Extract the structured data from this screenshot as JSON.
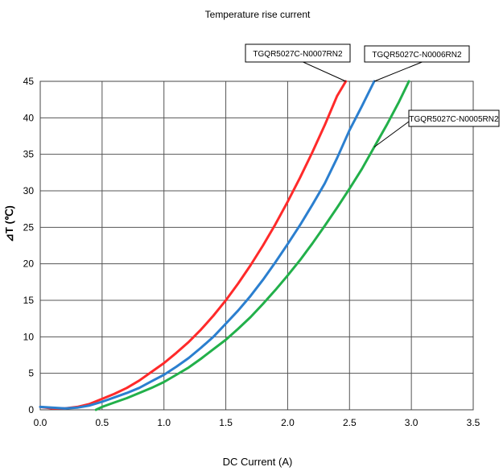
{
  "chart_data": {
    "type": "line",
    "title": "Temperature rise  current",
    "xlabel": "DC Current (A)",
    "ylabel": "⊿T (℃)",
    "xlim": [
      0,
      3.5
    ],
    "ylim": [
      0,
      45
    ],
    "xticks": [
      "0.0",
      "0.5",
      "1.0",
      "1.5",
      "2.0",
      "2.5",
      "3.0",
      "3.5"
    ],
    "yticks": [
      "0",
      "5",
      "10",
      "15",
      "20",
      "25",
      "30",
      "35",
      "40",
      "45"
    ],
    "grid": true,
    "legend": "callouts",
    "series": [
      {
        "name": "TGQR5027C-N0007RN2",
        "color": "#ff2a2a",
        "x": [
          0,
          0.1,
          0.2,
          0.3,
          0.4,
          0.5,
          0.6,
          0.7,
          0.8,
          0.9,
          1.0,
          1.1,
          1.2,
          1.3,
          1.4,
          1.5,
          1.6,
          1.7,
          1.8,
          1.9,
          2.0,
          2.1,
          2.2,
          2.3,
          2.4,
          2.47
        ],
        "y": [
          0.4,
          0.2,
          0.2,
          0.4,
          0.8,
          1.5,
          2.2,
          3.0,
          4.0,
          5.2,
          6.4,
          7.8,
          9.3,
          11.0,
          12.9,
          15.0,
          17.3,
          19.8,
          22.5,
          25.4,
          28.5,
          31.8,
          35.3,
          39.0,
          43.0,
          45.0
        ]
      },
      {
        "name": "TGQR5027C-N0006RN2",
        "color": "#2b7fcf",
        "x": [
          0,
          0.2,
          0.3,
          0.4,
          0.5,
          0.6,
          0.7,
          0.8,
          0.9,
          1.0,
          1.1,
          1.2,
          1.3,
          1.4,
          1.5,
          1.6,
          1.7,
          1.8,
          1.9,
          2.0,
          2.1,
          2.2,
          2.3,
          2.4,
          2.5,
          2.6,
          2.7
        ],
        "y": [
          0.4,
          0.2,
          0.3,
          0.6,
          1.1,
          1.7,
          2.3,
          3.0,
          3.9,
          4.8,
          5.9,
          7.1,
          8.5,
          10.0,
          11.8,
          13.6,
          15.6,
          17.8,
          20.2,
          22.7,
          25.3,
          28.1,
          31.0,
          34.5,
          38.3,
          41.6,
          45.0
        ]
      },
      {
        "name": "TGQR5027C-N0005RN2",
        "color": "#22b04a",
        "x": [
          0.45,
          0.5,
          0.6,
          0.7,
          0.8,
          0.9,
          1.0,
          1.1,
          1.2,
          1.3,
          1.4,
          1.5,
          1.6,
          1.7,
          1.8,
          1.9,
          2.0,
          2.1,
          2.2,
          2.3,
          2.4,
          2.5,
          2.6,
          2.7,
          2.8,
          2.9,
          2.98
        ],
        "y": [
          0.0,
          0.4,
          1.0,
          1.6,
          2.3,
          3.0,
          3.8,
          4.8,
          5.8,
          7.0,
          8.3,
          9.6,
          11.1,
          12.7,
          14.5,
          16.4,
          18.4,
          20.5,
          22.8,
          25.2,
          27.7,
          30.3,
          33.0,
          36.0,
          39.0,
          42.2,
          45.0
        ]
      }
    ],
    "callouts": [
      {
        "series": 0,
        "text": "TGQR5027C-N0007RN2"
      },
      {
        "series": 1,
        "text": "TGQR5027C-N0006RN2"
      },
      {
        "series": 2,
        "text": "TGQR5027C-N0005RN2"
      }
    ]
  }
}
